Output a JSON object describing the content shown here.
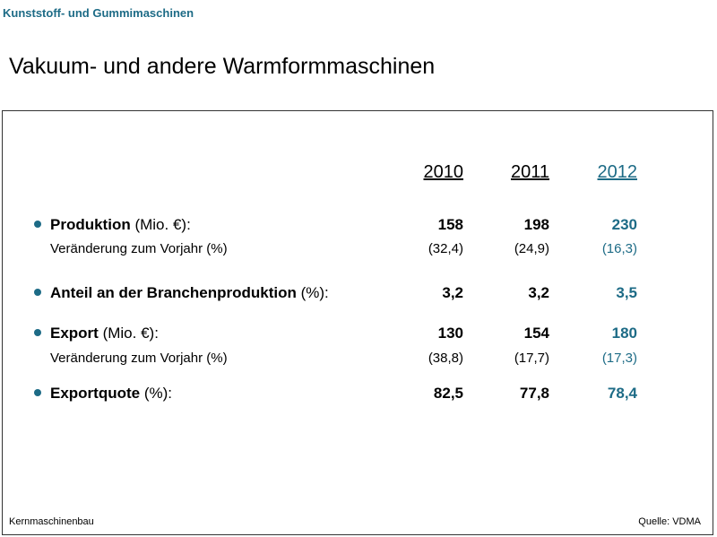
{
  "header": {
    "section": "Kunststoff- und Gummimaschinen",
    "title": "Vakuum- und andere Warmformmaschinen"
  },
  "table": {
    "columns": [
      "2010",
      "2011",
      "2012"
    ],
    "rows": [
      {
        "label": "Produktion",
        "unit": "(Mio. €):",
        "values": [
          "158",
          "198",
          "230"
        ],
        "change_label": "Veränderung zum Vorjahr (%)",
        "change": [
          "(32,4)",
          "(24,9)",
          "(16,3)"
        ]
      },
      {
        "label": "Anteil an der Branchenproduktion",
        "unit": "(%):",
        "values": [
          "3,2",
          "3,2",
          "3,5"
        ]
      },
      {
        "label": "Export",
        "unit": "(Mio. €):",
        "values": [
          "130",
          "154",
          "180"
        ],
        "change_label": "Veränderung zum Vorjahr (%)",
        "change": [
          "(38,8)",
          "(17,7)",
          "(17,3)"
        ]
      },
      {
        "label": "Exportquote",
        "unit": "(%):",
        "values": [
          "82,5",
          "77,8",
          "78,4"
        ]
      }
    ]
  },
  "footer": {
    "left": "Kernmaschinenbau",
    "right": "Quelle: VDMA"
  }
}
